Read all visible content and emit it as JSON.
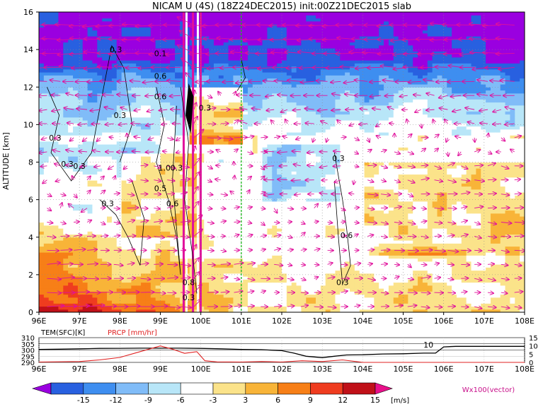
{
  "chart_data": [
    {
      "type": "heatmap",
      "title": "NICAM U (4S) (18Z24DEC2015) init:00Z21DEC2015 slab",
      "ylabel": "ALTITUDE [km]",
      "x_ticks": [
        "96E",
        "97E",
        "98E",
        "99E",
        "100E",
        "101E",
        "102E",
        "103E",
        "104E",
        "105E",
        "106E",
        "107E",
        "108E"
      ],
      "xlim": [
        96,
        108
      ],
      "y_ticks": [
        0,
        2,
        4,
        6,
        8,
        10,
        12,
        14,
        16
      ],
      "ylim": [
        0,
        16
      ],
      "grid": true,
      "vertical_line_lon": 101,
      "contour_labels": [
        {
          "text": "0.3",
          "lon": 96.4,
          "alt": 9.3
        },
        {
          "text": "0.3",
          "lon": 96.7,
          "alt": 7.9
        },
        {
          "text": "0.3",
          "lon": 97.0,
          "alt": 7.8
        },
        {
          "text": "0.3",
          "lon": 97.9,
          "alt": 14.0
        },
        {
          "text": "0.3",
          "lon": 98.0,
          "alt": 10.5
        },
        {
          "text": "0.3",
          "lon": 97.7,
          "alt": 5.8
        },
        {
          "text": "0.3",
          "lon": 100.1,
          "alt": 10.9
        },
        {
          "text": "0.1",
          "lon": 99.0,
          "alt": 13.8
        },
        {
          "text": "0.6",
          "lon": 99.0,
          "alt": 12.6
        },
        {
          "text": "0.6",
          "lon": 99.0,
          "alt": 11.5
        },
        {
          "text": "1.0",
          "lon": 99.1,
          "alt": 7.7
        },
        {
          "text": "0.3",
          "lon": 99.4,
          "alt": 7.7
        },
        {
          "text": "0.5",
          "lon": 99.0,
          "alt": 6.6
        },
        {
          "text": "0.6",
          "lon": 99.3,
          "alt": 5.8
        },
        {
          "text": "0.8",
          "lon": 99.7,
          "alt": 1.6
        },
        {
          "text": "0.3",
          "lon": 99.7,
          "alt": 0.8
        },
        {
          "text": "0.3",
          "lon": 103.4,
          "alt": 8.2
        },
        {
          "text": "0.6",
          "lon": 103.6,
          "alt": 4.1
        },
        {
          "text": "0.3",
          "lon": 103.5,
          "alt": 1.6
        }
      ],
      "levels": [
        -15,
        -12,
        -9,
        -6,
        -3,
        3,
        6,
        9,
        12,
        15
      ],
      "colorbar_colors": [
        "#9a00e0",
        "#2860e0",
        "#3e8ef0",
        "#80bcf8",
        "#b8e6f8",
        "#ffffff",
        "#fbe38a",
        "#f8b438",
        "#f77f17",
        "#ef3c1f",
        "#c01018",
        "#e8108a"
      ],
      "colorbar_unit": "[m/s]",
      "vector_label": "Wx100(vector)"
    },
    {
      "type": "line",
      "legend": [
        "TEM(SFC)[K]",
        "PRCP [mm/hr]"
      ],
      "x_ticks": [
        "96E",
        "97E",
        "98E",
        "99E",
        "100E",
        "101E",
        "102E",
        "103E",
        "104E",
        "105E",
        "106E",
        "107E",
        "108E"
      ],
      "left_ticks": [
        310,
        305,
        300,
        295,
        290
      ],
      "right_ticks": [
        15,
        10,
        5,
        0
      ],
      "annotation": "10",
      "series": [
        {
          "name": "TEM(SFC)[K]",
          "color": "#000000",
          "x": [
            96,
            96.5,
            97,
            97.5,
            98,
            98.5,
            99,
            99.5,
            100,
            100.5,
            101,
            101.5,
            102,
            102.3,
            102.6,
            103,
            103.3,
            103.6,
            104,
            104.5,
            105,
            105.5,
            105.8,
            106,
            106.3,
            107,
            108
          ],
          "y": [
            300.5,
            300.7,
            301.0,
            301.3,
            301.4,
            301.5,
            301.5,
            301.5,
            301.3,
            301.0,
            300.5,
            300.3,
            299.5,
            297.5,
            295.0,
            293.8,
            295.0,
            296.0,
            296.2,
            296.8,
            297.0,
            297.5,
            297.5,
            302.5,
            303.0,
            303.0,
            303.0
          ]
        },
        {
          "name": "PRCP [mm/hr]",
          "color": "#e02020",
          "x": [
            96,
            97,
            97.5,
            98,
            98.5,
            99,
            99.3,
            99.6,
            99.9,
            100.1,
            100.4,
            101,
            101.5,
            102,
            102.5,
            103,
            103.5,
            104,
            108
          ],
          "y": [
            0.2,
            0.5,
            1.5,
            3.0,
            6.5,
            10.0,
            8.0,
            5.5,
            6.5,
            1.0,
            0.3,
            0.2,
            0.5,
            0.2,
            1.0,
            0.5,
            1.5,
            0,
            0
          ]
        }
      ]
    }
  ]
}
